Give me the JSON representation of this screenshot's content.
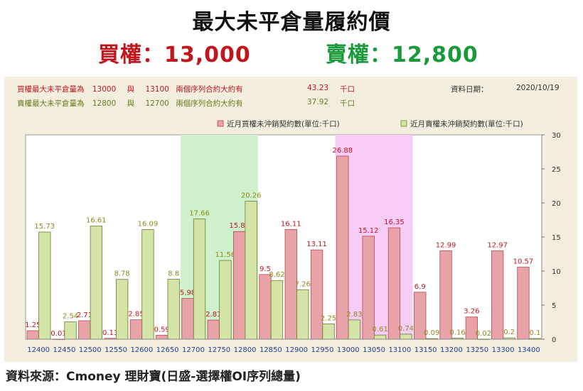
{
  "header": {
    "title": "最大未平倉量履約價",
    "call_label": "買權：13,000",
    "put_label": "賣權：12,800",
    "call_color": "#c0161c",
    "put_color": "#1a9a3a"
  },
  "info": {
    "call_line": {
      "prefix": "買權最大未平倉量為",
      "strike1": "13000",
      "conj": "與",
      "strike2": "13100",
      "text": "兩個序列合約大約有",
      "value": "43.23",
      "unit": "千口"
    },
    "put_line": {
      "prefix": "賣權最大未平倉量為",
      "strike1": "12800",
      "conj": "與",
      "strike2": "12700",
      "text": "兩個序列合約大約有",
      "value": "37.92",
      "unit": "千口"
    },
    "date_label": "資料日期：",
    "date_value": "2020/10/19"
  },
  "footer": {
    "source": "資料來源：Cmoney 理財寶(日盛-選擇權OI序列總量)"
  },
  "chart_data": {
    "type": "bar",
    "categories": [
      "12400",
      "12450",
      "12500",
      "12550",
      "12600",
      "12650",
      "12700",
      "12750",
      "12800",
      "12850",
      "12900",
      "12950",
      "13000",
      "13050",
      "13100",
      "13150",
      "13200",
      "13250",
      "13300",
      "13400"
    ],
    "series": [
      {
        "name": "近月買權未沖銷契約數(單位:千口)",
        "color": "#e8a3a9",
        "stroke": "#b5494f",
        "label_color": "#c0161c",
        "values": [
          1.25,
          0.01,
          2.71,
          0.13,
          2.85,
          0.59,
          5.98,
          2.81,
          15.81,
          9.5,
          16.11,
          13.11,
          26.88,
          15.12,
          16.35,
          6.9,
          12.99,
          3.26,
          12.97,
          10.57
        ]
      },
      {
        "name": "近月賣權未沖銷契約數(單位:千口)",
        "color": "#d4e3a6",
        "stroke": "#6b7d2e",
        "label_color": "#8f8a13",
        "values": [
          15.73,
          2.54,
          16.61,
          8.78,
          16.09,
          8.8,
          17.66,
          11.56,
          20.26,
          8.62,
          7.26,
          2.25,
          2.83,
          0.61,
          0.74,
          0.09,
          0.16,
          0.02,
          0.2,
          0.1
        ]
      }
    ],
    "highlights": [
      {
        "from": "12700",
        "to": "12800",
        "color": "#cdf2cd"
      },
      {
        "from": "13000",
        "to": "13100",
        "color": "#f7cdf7"
      }
    ],
    "ylim": [
      0,
      30
    ],
    "yticks": [
      0,
      5,
      10,
      15,
      20,
      25,
      30
    ],
    "legend_position": "top-right",
    "axis_label_color": "#1f3f99"
  }
}
